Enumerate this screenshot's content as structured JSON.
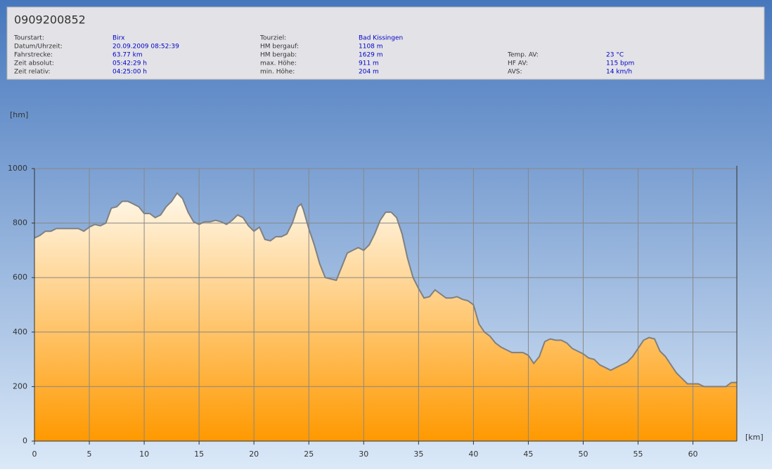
{
  "header": {
    "title": "0909200852",
    "columns": [
      [
        {
          "label": "Tourstart:",
          "value": "Birx"
        },
        {
          "label": "Datum/Uhrzeit:",
          "value": "20.09.2009 08:52:39"
        },
        {
          "label": "Fahrstrecke:",
          "value": "63.77 km"
        },
        {
          "label": "Zeit absolut:",
          "value": "05:42:29 h"
        },
        {
          "label": "Zeit relativ:",
          "value": "04:25:00 h"
        }
      ],
      [
        {
          "label": "Tourziel:",
          "value": "Bad Kissingen"
        },
        {
          "label": "HM bergauf:",
          "value": "1108 m"
        },
        {
          "label": "HM bergab:",
          "value": "1629 m"
        },
        {
          "label": "max. Höhe:",
          "value": "911 m"
        },
        {
          "label": "min. Höhe:",
          "value": "204 m"
        }
      ],
      [
        {
          "label": "Temp. AV:",
          "value": "23 °C"
        },
        {
          "label": "HF AV:",
          "value": "115 bpm"
        },
        {
          "label": "AVS:",
          "value": "14 km/h"
        }
      ]
    ]
  },
  "chart_data": {
    "type": "area",
    "ylabel": "[hm]",
    "xlabel": "[km]",
    "x": [
      0,
      0.5,
      1,
      1.5,
      2,
      3,
      4,
      4.5,
      5,
      5.5,
      6,
      6.5,
      7,
      7.5,
      8,
      8.5,
      9,
      9.5,
      10,
      10.5,
      11,
      11.5,
      12,
      12.5,
      13,
      13.5,
      14,
      14.5,
      15,
      15.5,
      16,
      16.5,
      17,
      17.5,
      18,
      18.5,
      19,
      19.5,
      20,
      20.5,
      21,
      21.5,
      22,
      22.5,
      23,
      23.5,
      24,
      24.3,
      24.5,
      25,
      25.5,
      26,
      26.5,
      27,
      27.5,
      28,
      28.5,
      29,
      29.5,
      30,
      30.5,
      31,
      31.5,
      32,
      32.5,
      33,
      33.5,
      34,
      34.5,
      35,
      35.5,
      36,
      36.5,
      37,
      37.5,
      38,
      38.5,
      39,
      39.5,
      40,
      40.5,
      41,
      41.5,
      42,
      42.5,
      43,
      43.5,
      44,
      44.5,
      45,
      45.5,
      46,
      46.5,
      47,
      47.5,
      48,
      48.5,
      49,
      49.5,
      50,
      50.5,
      51,
      51.5,
      52,
      52.5,
      53,
      53.5,
      54,
      54.5,
      55,
      55.5,
      56,
      56.5,
      57,
      57.5,
      58,
      58.5,
      59,
      59.5,
      60,
      60.5,
      61,
      62,
      63,
      63.5,
      64
    ],
    "values": [
      745,
      755,
      770,
      770,
      780,
      780,
      780,
      770,
      785,
      795,
      790,
      800,
      855,
      860,
      880,
      880,
      870,
      860,
      835,
      835,
      820,
      830,
      860,
      880,
      910,
      890,
      840,
      805,
      795,
      805,
      805,
      810,
      805,
      795,
      810,
      830,
      820,
      790,
      770,
      785,
      740,
      735,
      750,
      750,
      760,
      800,
      860,
      870,
      850,
      780,
      720,
      650,
      600,
      595,
      590,
      640,
      690,
      700,
      710,
      700,
      720,
      760,
      810,
      840,
      840,
      820,
      760,
      670,
      600,
      560,
      525,
      530,
      555,
      540,
      525,
      525,
      530,
      520,
      515,
      500,
      430,
      400,
      385,
      360,
      345,
      335,
      325,
      325,
      325,
      315,
      285,
      310,
      365,
      375,
      370,
      370,
      360,
      340,
      330,
      320,
      305,
      300,
      280,
      270,
      260,
      270,
      280,
      290,
      310,
      340,
      370,
      380,
      375,
      330,
      310,
      280,
      250,
      230,
      210,
      210,
      210,
      200,
      200,
      200,
      215,
      215
    ],
    "xlim": [
      0,
      64
    ],
    "ylim": [
      0,
      1000
    ],
    "xticks": [
      0,
      5,
      10,
      15,
      20,
      25,
      30,
      35,
      40,
      45,
      50,
      55,
      60
    ],
    "yticks": [
      0,
      200,
      400,
      600,
      800,
      1000
    ],
    "grid": true,
    "line_color": "#808080",
    "fill_top": "#fff8ea",
    "fill_bottom": "#ff9900"
  }
}
